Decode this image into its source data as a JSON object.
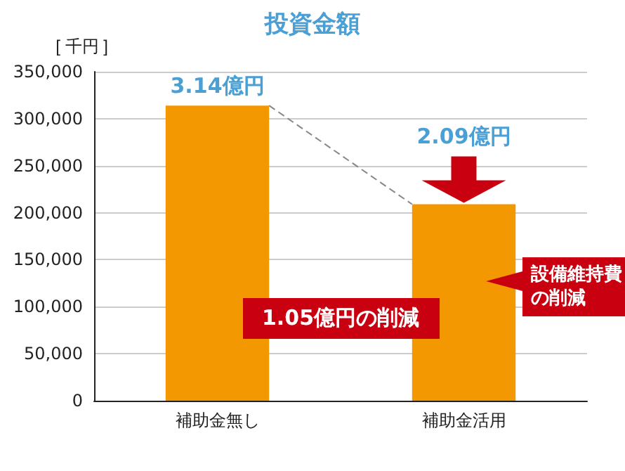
{
  "chart_data": {
    "type": "bar",
    "title": "投資金額",
    "ylabel": "[ 千円 ]",
    "categories": [
      "補助金無し",
      "補助金活用"
    ],
    "values": [
      314000,
      209000
    ],
    "color": "#f39800",
    "ylim": [
      0,
      350000
    ],
    "yticks": [
      0,
      {
        "value": 50000,
        "label": "50,000"
      },
      {
        "value": 100000,
        "label": "100,000"
      },
      {
        "value": 150000,
        "label": "150,000"
      },
      {
        "value": 200000,
        "label": "200,000"
      },
      {
        "value": 250000,
        "label": "250,000"
      },
      {
        "value": 300000,
        "label": "300,000"
      },
      {
        "value": 350000,
        "label": "350,000"
      }
    ],
    "grid": "y",
    "annotations": [
      {
        "text": "3.14億円",
        "x": "補助金無し",
        "y": 314000
      },
      {
        "text": "2.09億円",
        "x": "補助金活用",
        "y": 209000
      },
      "1.05億円の削減",
      "設備維持費の削減"
    ]
  }
}
